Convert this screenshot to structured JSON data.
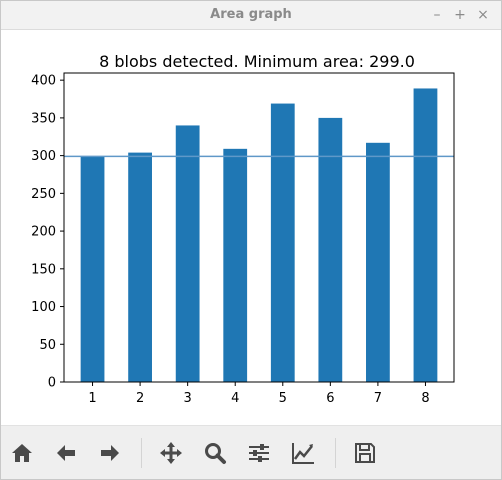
{
  "window": {
    "title": "Area graph",
    "minimize_glyph": "–",
    "maximize_glyph": "+",
    "close_glyph": "×"
  },
  "toolbar": {
    "buttons": [
      {
        "icon": "home-icon"
      },
      {
        "icon": "back-arrow-icon"
      },
      {
        "icon": "forward-arrow-icon"
      },
      {
        "icon": "pan-icon"
      },
      {
        "icon": "zoom-icon"
      },
      {
        "icon": "subplots-icon"
      },
      {
        "icon": "edit-curve-icon"
      },
      {
        "icon": "save-icon"
      }
    ]
  },
  "chart_data": {
    "type": "bar",
    "title": "8 blobs detected. Minimum area: 299.0",
    "xlabel": "",
    "ylabel": "",
    "categories": [
      "1",
      "2",
      "3",
      "4",
      "5",
      "6",
      "7",
      "8"
    ],
    "values": [
      299,
      304,
      340,
      309,
      369,
      350,
      317,
      389
    ],
    "ylim": [
      0,
      409.5
    ],
    "yticks": [
      0,
      50,
      100,
      150,
      200,
      250,
      300,
      350,
      400
    ],
    "grid": false,
    "bar_color": "#1f77b4",
    "threshold_line": {
      "value": 299.0,
      "color": "#5f98c8"
    }
  }
}
